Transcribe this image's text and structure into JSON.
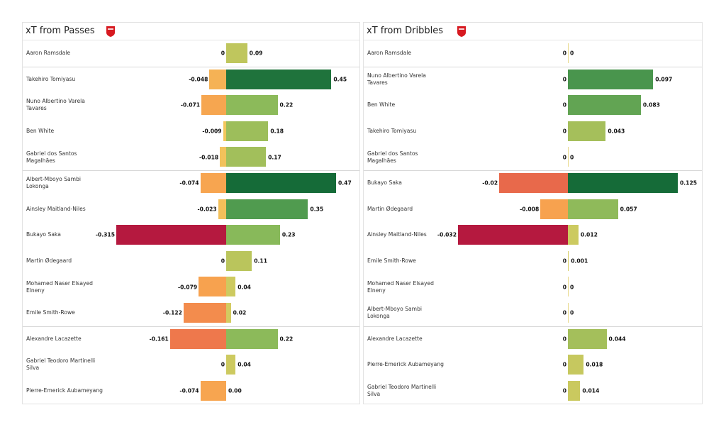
{
  "chart_data": [
    {
      "type": "bar",
      "title": "xT from Passes",
      "orientation": "horizontal-diverging",
      "group_breaks_after": [
        0,
        4,
        10
      ],
      "players": [
        "Aaron Ramsdale",
        "Takehiro Tomiyasu",
        "Nuno Albertino Varela Tavares",
        "Ben White",
        "Gabriel dos Santos Magalhães",
        "Albert-Mboyo Sambi Lokonga",
        "Ainsley Maitland-Niles",
        "Bukayo Saka",
        "Martin Ødegaard",
        "Mohamed Naser Elsayed Elneny",
        "Emile Smith-Rowe",
        "Alexandre Lacazette",
        "Gabriel Teodoro Martinelli Silva",
        "Pierre-Emerick Aubameyang"
      ],
      "negative": [
        0,
        -0.048,
        -0.071,
        -0.009,
        -0.018,
        -0.074,
        -0.023,
        -0.315,
        0,
        -0.079,
        -0.122,
        -0.161,
        0,
        -0.074
      ],
      "negative_labels": [
        "0",
        "-0.048",
        "-0.071",
        "-0.009",
        "-0.018",
        "-0.074",
        "-0.023",
        "-0.315",
        "0",
        "-0.079",
        "-0.122",
        "-0.161",
        "0",
        "-0.074"
      ],
      "positive": [
        0.09,
        0.45,
        0.22,
        0.18,
        0.17,
        0.47,
        0.35,
        0.23,
        0.11,
        0.04,
        0.02,
        0.22,
        0.04,
        0.0
      ],
      "positive_labels": [
        "0.09",
        "0.45",
        "0.22",
        "0.18",
        "0.17",
        "0.47",
        "0.35",
        "0.23",
        "0.11",
        "0.04",
        "0.02",
        "0.22",
        "0.04",
        "0.00"
      ]
    },
    {
      "type": "bar",
      "title": "xT from Dribbles",
      "orientation": "horizontal-diverging",
      "group_breaks_after": [
        0,
        4,
        10
      ],
      "players": [
        "Aaron Ramsdale",
        "Nuno Albertino Varela Tavares",
        "Ben White",
        "Takehiro Tomiyasu",
        "Gabriel dos Santos Magalhães",
        "Bukayo Saka",
        "Martin Ødegaard",
        "Ainsley Maitland-Niles",
        "Emile Smith-Rowe",
        "Mohamed Naser Elsayed Elneny",
        "Albert-Mboyo Sambi Lokonga",
        "Alexandre Lacazette",
        "Pierre-Emerick Aubameyang",
        "Gabriel Teodoro Martinelli Silva"
      ],
      "negative": [
        0,
        0,
        0,
        0,
        0,
        -0.02,
        -0.008,
        -0.032,
        0,
        0,
        0,
        0,
        0,
        0
      ],
      "negative_labels": [
        "0",
        "0",
        "0",
        "0",
        "0",
        "-0.02",
        "-0.008",
        "-0.032",
        "0",
        "0",
        "0",
        "0",
        "0",
        "0"
      ],
      "positive": [
        0,
        0.097,
        0.083,
        0.043,
        0,
        0.125,
        0.057,
        0.012,
        0.001,
        0,
        0,
        0.044,
        0.018,
        0.014
      ],
      "positive_labels": [
        "0",
        "0.097",
        "0.083",
        "0.043",
        "0",
        "0.125",
        "0.057",
        "0.012",
        "0.001",
        "0",
        "0",
        "0.044",
        "0.018",
        "0.014"
      ]
    }
  ],
  "colors": {
    "positive_scale": [
      "#d8cd62",
      "#b8c45c",
      "#86b85a",
      "#4f9a4f",
      "#156b38"
    ],
    "negative_scale": [
      "#f1cc5e",
      "#f7a24f",
      "#ef7a4c",
      "#e0584a",
      "#b5193f"
    ],
    "crest": "#d71920"
  }
}
